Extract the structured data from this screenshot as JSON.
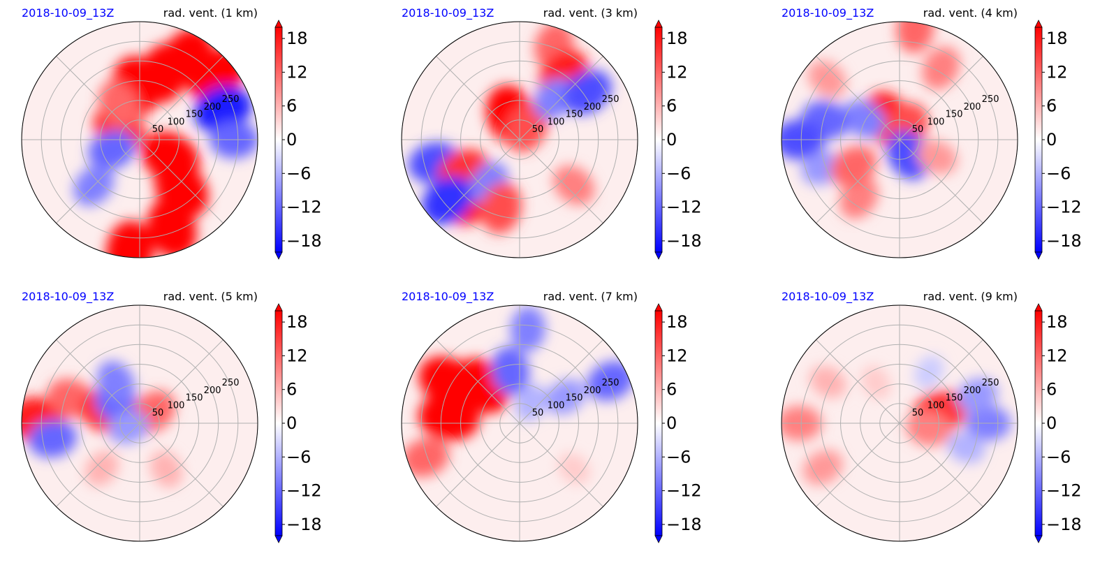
{
  "figure": {
    "colormap": {
      "negative": "#0000ff",
      "neutral": "#ffffff",
      "positive": "#ff0000"
    }
  },
  "chart_data": [
    {
      "type": "heatmap",
      "projection": "polar",
      "date_label": "2018-10-09_13Z",
      "title": "rad. vent. (1 km)",
      "ring_labels": [
        "50",
        "100",
        "150",
        "200",
        "250"
      ],
      "colorbar": {
        "ticks": [
          "18",
          "12",
          "6",
          "0",
          "−6",
          "−12",
          "−18"
        ],
        "range": [
          -20,
          20
        ],
        "extend": "both"
      },
      "grid": true,
      "features": [
        {
          "r": 0.2,
          "theta": 150,
          "value": 16
        },
        {
          "r": 0.45,
          "theta": 95,
          "value": 20
        },
        {
          "r": 0.6,
          "theta": 70,
          "value": 20
        },
        {
          "r": 0.8,
          "theta": 60,
          "value": 20
        },
        {
          "r": 0.85,
          "theta": 40,
          "value": 20
        },
        {
          "r": 0.75,
          "theta": 20,
          "value": -18
        },
        {
          "r": 0.8,
          "theta": 0,
          "value": -12
        },
        {
          "r": 0.3,
          "theta": -30,
          "value": 20
        },
        {
          "r": 0.55,
          "theta": -50,
          "value": 20
        },
        {
          "r": 0.8,
          "theta": -70,
          "value": 20
        },
        {
          "r": 0.95,
          "theta": -95,
          "value": 20
        },
        {
          "r": 0.25,
          "theta": 200,
          "value": -12
        },
        {
          "r": 0.55,
          "theta": 225,
          "value": -10
        },
        {
          "r": 0.35,
          "theta": 120,
          "value": 12
        }
      ]
    },
    {
      "type": "heatmap",
      "projection": "polar",
      "date_label": "2018-10-09_13Z",
      "title": "rad. vent. (3 km)",
      "ring_labels": [
        "50",
        "100",
        "150",
        "200",
        "250"
      ],
      "colorbar": {
        "ticks": [
          "18",
          "12",
          "6",
          "0",
          "−6",
          "−12",
          "−18"
        ],
        "range": [
          -20,
          20
        ],
        "extend": "both"
      },
      "grid": true,
      "features": [
        {
          "r": 0.22,
          "theta": 110,
          "value": 20
        },
        {
          "r": 0.12,
          "theta": 60,
          "value": 14
        },
        {
          "r": 0.85,
          "theta": 70,
          "value": 12
        },
        {
          "r": 0.65,
          "theta": 55,
          "value": 18
        },
        {
          "r": 0.45,
          "theta": 50,
          "value": -10
        },
        {
          "r": 0.7,
          "theta": 35,
          "value": -14
        },
        {
          "r": 0.75,
          "theta": 195,
          "value": -14
        },
        {
          "r": 0.55,
          "theta": 210,
          "value": 16
        },
        {
          "r": 0.65,
          "theta": 230,
          "value": 18
        },
        {
          "r": 0.8,
          "theta": 220,
          "value": -16
        },
        {
          "r": 0.45,
          "theta": 235,
          "value": -10
        },
        {
          "r": 0.6,
          "theta": 255,
          "value": 14
        },
        {
          "r": 0.6,
          "theta": -40,
          "value": 10
        }
      ]
    },
    {
      "type": "heatmap",
      "projection": "polar",
      "date_label": "2018-10-09_13Z",
      "title": "rad. vent. (4 km)",
      "ring_labels": [
        "50",
        "100",
        "150",
        "200",
        "250"
      ],
      "colorbar": {
        "ticks": [
          "18",
          "12",
          "6",
          "0",
          "−6",
          "−12",
          "−18"
        ],
        "range": [
          -20,
          20
        ],
        "extend": "both"
      },
      "grid": true,
      "features": [
        {
          "r": 0.2,
          "theta": 120,
          "value": 18
        },
        {
          "r": 0.12,
          "theta": 60,
          "value": 14
        },
        {
          "r": 0.15,
          "theta": -60,
          "value": -14
        },
        {
          "r": 0.35,
          "theta": 150,
          "value": -10
        },
        {
          "r": 0.65,
          "theta": 165,
          "value": -12
        },
        {
          "r": 0.85,
          "theta": 180,
          "value": -14
        },
        {
          "r": 0.7,
          "theta": 200,
          "value": -8
        },
        {
          "r": 0.6,
          "theta": 235,
          "value": 10
        },
        {
          "r": 0.8,
          "theta": 140,
          "value": 8
        },
        {
          "r": 0.95,
          "theta": 82,
          "value": 12
        },
        {
          "r": 0.7,
          "theta": 60,
          "value": 10
        },
        {
          "r": 0.35,
          "theta": -25,
          "value": 8
        },
        {
          "r": 0.45,
          "theta": 210,
          "value": 12
        }
      ]
    },
    {
      "type": "heatmap",
      "projection": "polar",
      "date_label": "2018-10-09_13Z",
      "title": "rad. vent. (5 km)",
      "ring_labels": [
        "50",
        "100",
        "150",
        "200",
        "250"
      ],
      "colorbar": {
        "ticks": [
          "18",
          "12",
          "6",
          "0",
          "−6",
          "−12",
          "−18"
        ],
        "range": [
          -20,
          20
        ],
        "extend": "both"
      },
      "grid": true,
      "features": [
        {
          "r": 0.88,
          "theta": 178,
          "value": 18
        },
        {
          "r": 0.75,
          "theta": 190,
          "value": -12
        },
        {
          "r": 0.62,
          "theta": 160,
          "value": 12
        },
        {
          "r": 0.3,
          "theta": 160,
          "value": 16
        },
        {
          "r": 0.25,
          "theta": 140,
          "value": -12
        },
        {
          "r": 0.4,
          "theta": 120,
          "value": -10
        },
        {
          "r": 0.15,
          "theta": 40,
          "value": 12
        },
        {
          "r": 0.1,
          "theta": 200,
          "value": -8
        },
        {
          "r": 0.5,
          "theta": 230,
          "value": 6
        },
        {
          "r": 0.45,
          "theta": -60,
          "value": 6
        }
      ]
    },
    {
      "type": "heatmap",
      "projection": "polar",
      "date_label": "2018-10-09_13Z",
      "title": "rad. vent. (7 km)",
      "ring_labels": [
        "50",
        "100",
        "150",
        "200",
        "250"
      ],
      "colorbar": {
        "ticks": [
          "18",
          "12",
          "6",
          "0",
          "−6",
          "−12",
          "−18"
        ],
        "range": [
          -20,
          20
        ],
        "extend": "both"
      },
      "grid": true,
      "features": [
        {
          "r": 0.7,
          "theta": 150,
          "value": 20
        },
        {
          "r": 0.6,
          "theta": 175,
          "value": 20
        },
        {
          "r": 0.45,
          "theta": 135,
          "value": 20
        },
        {
          "r": 0.85,
          "theta": 200,
          "value": 12
        },
        {
          "r": 0.45,
          "theta": 100,
          "value": -12
        },
        {
          "r": 0.8,
          "theta": 85,
          "value": -10
        },
        {
          "r": 0.45,
          "theta": 30,
          "value": -8
        },
        {
          "r": 0.85,
          "theta": 25,
          "value": -12
        },
        {
          "r": 0.2,
          "theta": 60,
          "value": -6
        },
        {
          "r": 0.6,
          "theta": -40,
          "value": 4
        }
      ]
    },
    {
      "type": "heatmap",
      "projection": "polar",
      "date_label": "2018-10-09_13Z",
      "title": "rad. vent. (9 km)",
      "ring_labels": [
        "50",
        "100",
        "150",
        "200",
        "250"
      ],
      "colorbar": {
        "ticks": [
          "18",
          "12",
          "6",
          "0",
          "−6",
          "−12",
          "−18"
        ],
        "range": [
          -20,
          20
        ],
        "extend": "both"
      },
      "grid": true,
      "features": [
        {
          "r": 0.85,
          "theta": 180,
          "value": 10
        },
        {
          "r": 0.75,
          "theta": 210,
          "value": 8
        },
        {
          "r": 0.7,
          "theta": 150,
          "value": 6
        },
        {
          "r": 0.35,
          "theta": 15,
          "value": 16
        },
        {
          "r": 0.25,
          "theta": -10,
          "value": 10
        },
        {
          "r": 0.75,
          "theta": 0,
          "value": -10
        },
        {
          "r": 0.7,
          "theta": 20,
          "value": -8
        },
        {
          "r": 0.6,
          "theta": -20,
          "value": -6
        },
        {
          "r": 0.5,
          "theta": 60,
          "value": -4
        },
        {
          "r": 0.4,
          "theta": 120,
          "value": 4
        }
      ]
    }
  ]
}
